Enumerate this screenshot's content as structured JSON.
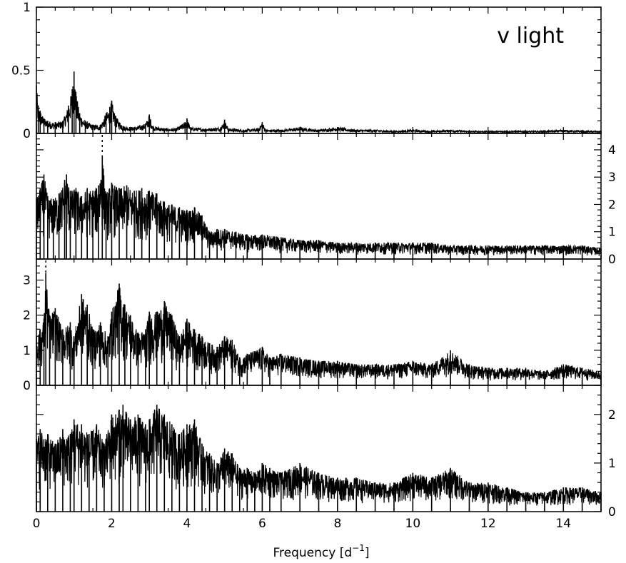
{
  "figure": {
    "x_axis_label": "Frequency [d",
    "x_axis_label_sup": "−1",
    "x_axis_label_end": "]"
  },
  "chart_data": [
    {
      "type": "line",
      "title": "",
      "annotation": "v light",
      "xlabel": "",
      "ylabel": "",
      "xlim": [
        0,
        15
      ],
      "ylim": [
        0,
        1.0
      ],
      "yaxis_side": "left",
      "yticks": [
        0,
        0.5,
        1
      ],
      "ytick_labels": [
        "0",
        "0.5",
        "1"
      ],
      "series": [
        {
          "x": [
            0.0,
            0.05,
            0.1,
            0.2,
            0.3,
            0.5,
            0.7,
            0.85,
            0.95,
            1.0,
            1.05,
            1.15,
            1.3,
            1.5,
            1.7,
            1.85,
            1.95,
            2.0,
            2.1,
            2.3,
            2.6,
            2.9,
            3.0,
            3.1,
            3.4,
            3.7,
            3.95,
            4.0,
            4.1,
            4.5,
            4.9,
            5.0,
            5.1,
            5.5,
            5.9,
            6.0,
            6.1,
            6.5,
            7.0,
            7.5,
            8.0,
            8.5,
            9.0,
            9.5,
            10.0,
            10.5,
            11.0,
            11.5,
            12.0,
            12.5,
            13.0,
            13.5,
            14.0,
            14.5,
            15.0
          ],
          "y": [
            0.38,
            0.22,
            0.18,
            0.12,
            0.1,
            0.09,
            0.1,
            0.22,
            0.35,
            0.49,
            0.33,
            0.16,
            0.1,
            0.07,
            0.07,
            0.16,
            0.21,
            0.26,
            0.14,
            0.06,
            0.05,
            0.08,
            0.15,
            0.06,
            0.04,
            0.04,
            0.09,
            0.12,
            0.05,
            0.04,
            0.05,
            0.11,
            0.04,
            0.03,
            0.04,
            0.09,
            0.03,
            0.03,
            0.05,
            0.03,
            0.05,
            0.03,
            0.03,
            0.02,
            0.03,
            0.02,
            0.03,
            0.02,
            0.02,
            0.02,
            0.02,
            0.02,
            0.03,
            0.02,
            0.02
          ]
        }
      ]
    },
    {
      "type": "line",
      "title": "",
      "xlabel": "",
      "ylabel": "",
      "xlim": [
        0,
        15
      ],
      "ylim": [
        0,
        4.6
      ],
      "yaxis_side": "right",
      "yticks": [
        0,
        1,
        2,
        3,
        4
      ],
      "ytick_labels": [
        "0",
        "1",
        "2",
        "3",
        "4"
      ],
      "marker_x": 1.75,
      "series": [
        {
          "x": [
            0.0,
            0.1,
            0.2,
            0.3,
            0.45,
            0.6,
            0.75,
            0.8,
            0.9,
            1.05,
            1.2,
            1.35,
            1.5,
            1.65,
            1.75,
            1.85,
            2.0,
            2.2,
            2.4,
            2.6,
            2.8,
            3.0,
            3.2,
            3.4,
            3.6,
            3.8,
            4.0,
            4.2,
            4.4,
            4.6,
            4.8,
            5.0,
            5.3,
            5.6,
            6.0,
            6.5,
            7.0,
            7.5,
            8.0,
            8.5,
            9.0,
            9.5,
            10.0,
            10.5,
            11.0,
            11.5,
            12.0,
            12.5,
            13.0,
            13.5,
            14.0,
            14.5,
            15.0
          ],
          "y": [
            2.2,
            2.6,
            3.1,
            2.3,
            2.2,
            2.4,
            2.9,
            3.1,
            2.5,
            2.6,
            2.3,
            2.6,
            2.5,
            2.7,
            3.8,
            2.4,
            2.8,
            2.6,
            2.7,
            2.5,
            2.6,
            2.5,
            2.4,
            2.1,
            2.0,
            1.9,
            1.8,
            1.9,
            1.6,
            1.0,
            1.1,
            1.1,
            1.0,
            0.9,
            0.9,
            0.8,
            0.7,
            0.7,
            0.6,
            0.6,
            0.6,
            0.6,
            0.6,
            0.6,
            0.5,
            0.5,
            0.5,
            0.5,
            0.5,
            0.5,
            0.5,
            0.5,
            0.4
          ]
        }
      ]
    },
    {
      "type": "line",
      "title": "",
      "xlabel": "",
      "ylabel": "",
      "xlim": [
        0,
        15
      ],
      "ylim": [
        0,
        3.6
      ],
      "yaxis_side": "left",
      "yticks": [
        0,
        1,
        2,
        3
      ],
      "ytick_labels": [
        "0",
        "1",
        "2",
        "3"
      ],
      "marker_x": 0.25,
      "series": [
        {
          "x": [
            0.0,
            0.1,
            0.2,
            0.25,
            0.35,
            0.5,
            0.7,
            0.9,
            1.0,
            1.2,
            1.35,
            1.5,
            1.7,
            1.9,
            2.0,
            2.2,
            2.35,
            2.5,
            2.7,
            2.9,
            3.0,
            3.2,
            3.4,
            3.6,
            3.8,
            4.0,
            4.2,
            4.4,
            4.6,
            4.8,
            5.0,
            5.2,
            5.4,
            5.6,
            6.0,
            6.2,
            6.5,
            7.0,
            7.5,
            8.0,
            8.5,
            9.0,
            9.5,
            10.0,
            10.5,
            11.0,
            11.5,
            12.0,
            12.5,
            13.0,
            13.5,
            14.0,
            14.5,
            15.0
          ],
          "y": [
            1.4,
            1.6,
            1.9,
            3.2,
            2.0,
            2.2,
            1.6,
            1.8,
            1.4,
            2.6,
            2.3,
            1.6,
            1.8,
            1.4,
            2.1,
            2.9,
            2.3,
            2.0,
            1.5,
            1.6,
            2.1,
            2.1,
            2.4,
            2.0,
            1.4,
            1.9,
            1.6,
            1.4,
            1.2,
            1.1,
            1.4,
            1.3,
            0.8,
            0.9,
            1.1,
            0.8,
            0.9,
            0.8,
            0.7,
            0.7,
            0.6,
            0.6,
            0.6,
            0.7,
            0.6,
            1.0,
            0.6,
            0.5,
            0.5,
            0.5,
            0.4,
            0.6,
            0.5,
            0.4
          ]
        }
      ]
    },
    {
      "type": "line",
      "title": "",
      "xlabel": "Frequency [d⁻¹]",
      "ylabel": "",
      "xlim": [
        0,
        15
      ],
      "ylim": [
        0,
        2.6
      ],
      "yaxis_side": "right",
      "yticks": [
        0,
        1,
        2
      ],
      "ytick_labels": [
        "0",
        "1",
        "2"
      ],
      "xticks": [
        0,
        2,
        4,
        6,
        8,
        10,
        12,
        14
      ],
      "xtick_labels": [
        "0",
        "2",
        "4",
        "6",
        "8",
        "10",
        "12",
        "14"
      ],
      "series": [
        {
          "x": [
            0.0,
            0.1,
            0.3,
            0.5,
            0.7,
            0.9,
            1.0,
            1.2,
            1.4,
            1.6,
            1.8,
            2.0,
            2.2,
            2.3,
            2.5,
            2.7,
            2.9,
            3.0,
            3.2,
            3.4,
            3.6,
            3.8,
            4.0,
            4.2,
            4.4,
            4.6,
            4.8,
            5.0,
            5.2,
            5.4,
            5.6,
            5.8,
            6.0,
            6.2,
            6.5,
            7.0,
            7.5,
            8.0,
            8.5,
            9.0,
            9.5,
            10.0,
            10.5,
            11.0,
            11.5,
            12.0,
            12.5,
            13.0,
            13.5,
            14.0,
            14.5,
            15.0
          ],
          "y": [
            1.5,
            1.7,
            1.6,
            1.4,
            1.7,
            1.6,
            1.9,
            1.8,
            1.6,
            1.8,
            1.4,
            2.0,
            2.1,
            2.2,
            1.9,
            2.0,
            1.8,
            1.9,
            2.2,
            2.0,
            1.8,
            1.6,
            1.8,
            1.9,
            1.4,
            1.2,
            1.0,
            1.3,
            1.2,
            0.9,
            0.9,
            0.8,
            1.0,
            0.9,
            0.8,
            1.0,
            0.8,
            0.7,
            0.7,
            0.6,
            0.6,
            0.8,
            0.7,
            0.9,
            0.6,
            0.6,
            0.5,
            0.4,
            0.4,
            0.5,
            0.5,
            0.4
          ]
        }
      ]
    }
  ]
}
